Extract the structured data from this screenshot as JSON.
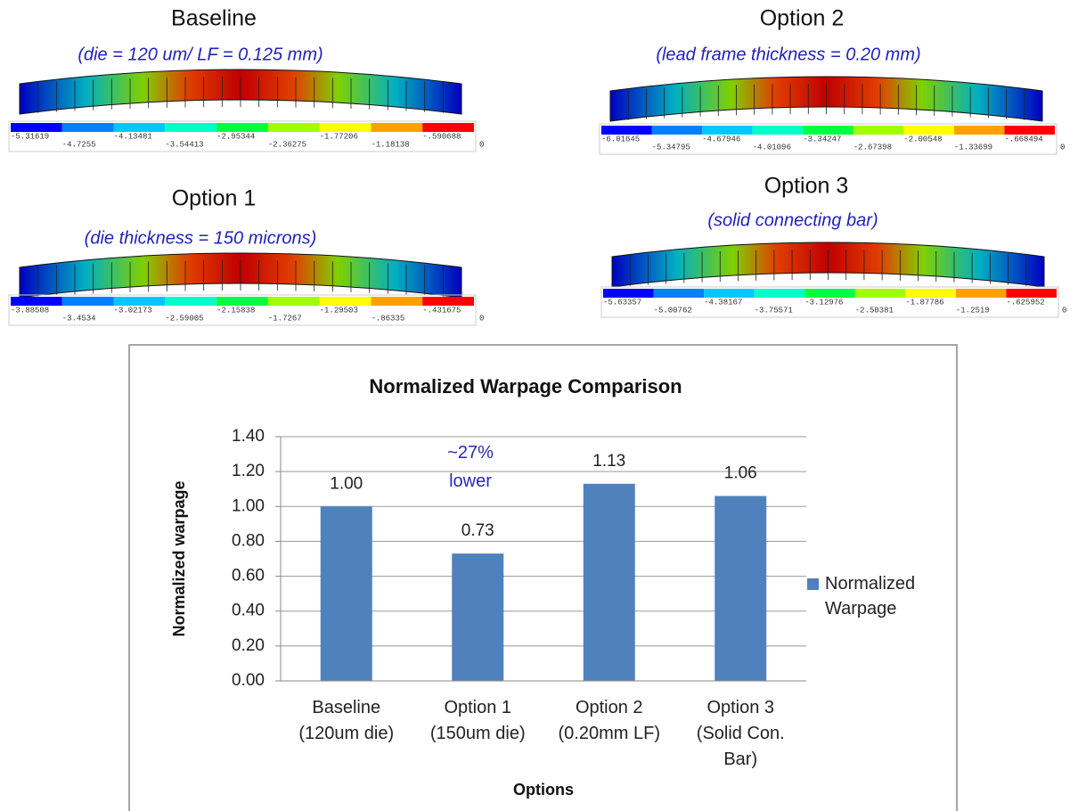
{
  "colorbar_colors": [
    "#0000ff",
    "#0080ff",
    "#00c8ff",
    "#00ffc8",
    "#00ff40",
    "#a0ff00",
    "#ffff00",
    "#ffa000",
    "#ff0000"
  ],
  "panels": [
    {
      "title": "Baseline",
      "subtitle": "(die = 120 um/ LF = 0.125 mm)",
      "colorbar_labels": [
        "-5.31619",
        "-4.7255",
        "-4.13481",
        "-3.54413",
        "-2.95344",
        "-2.36275",
        "-1.77206",
        "-1.18138",
        "-.590688",
        "0"
      ]
    },
    {
      "title": "Option 2",
      "subtitle": "(lead frame thickness = 0.20 mm)",
      "colorbar_labels": [
        "-6.01645",
        "-5.34795",
        "-4.67946",
        "-4.01096",
        "-3.34247",
        "-2.67398",
        "-2.00548",
        "-1.33699",
        "-.668494",
        "0"
      ]
    },
    {
      "title": "Option 1",
      "subtitle": "(die thickness = 150 microns)",
      "colorbar_labels": [
        "-3.88508",
        "-3.4534",
        "-3.02173",
        "-2.59005",
        "-2.15838",
        "-1.7267",
        "-1.29503",
        "-.86335",
        "-.431675",
        "0"
      ]
    },
    {
      "title": "Option 3",
      "subtitle": "(solid connecting bar)",
      "colorbar_labels": [
        "-5.63357",
        "-5.00762",
        "-4.38167",
        "-3.75571",
        "-3.12976",
        "-2.50381",
        "-1.87786",
        "-1.2519",
        "-.625952",
        "0"
      ]
    }
  ],
  "chart_data": {
    "type": "bar",
    "title": "Normalized Warpage Comparison",
    "y_label": "Normalized warpage",
    "x_label": "Options",
    "categories": [
      "Baseline\n(120um die)",
      "Option 1\n(150um die)",
      "Option 2\n(0.20mm LF)",
      "Option 3\n(Solid Con.\nBar)"
    ],
    "series": [
      {
        "name": "Normalized\nWarpage",
        "color": "#4f81bd",
        "values": [
          1.0,
          0.73,
          1.13,
          1.06
        ],
        "value_labels": [
          "1.00",
          "0.73",
          "1.13",
          "1.06"
        ]
      }
    ],
    "annotation": "~27%\nlower",
    "ylim": [
      0,
      1.4
    ],
    "yticks": [
      {
        "value": 0,
        "label": "0.00"
      },
      {
        "value": 0.2,
        "label": "0.20"
      },
      {
        "value": 0.4,
        "label": "0.40"
      },
      {
        "value": 0.6,
        "label": "0.60"
      },
      {
        "value": 0.8,
        "label": "0.80"
      },
      {
        "value": 1.0,
        "label": "1.00"
      },
      {
        "value": 1.2,
        "label": "1.20"
      },
      {
        "value": 1.4,
        "label": "1.40"
      }
    ],
    "grid": true,
    "legend": "right"
  }
}
